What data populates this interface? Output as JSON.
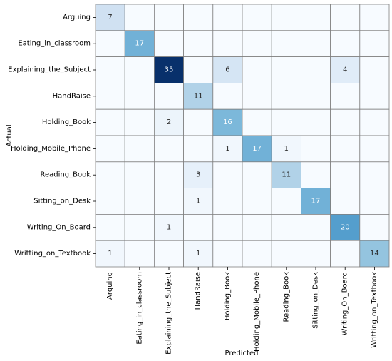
{
  "chart_data": {
    "type": "heatmap",
    "title": "",
    "xlabel": "Predicted",
    "ylabel": "Actual",
    "rows": [
      "Arguing",
      "Eating_in_classroom",
      "Explaining_the_Subject",
      "HandRaise",
      "Holding_Book",
      "Holding_Mobile_Phone",
      "Reading_Book",
      "Sitting_on_Desk",
      "Writing_On_Board",
      "Writting_on_Textbook"
    ],
    "columns": [
      "Arguing",
      "Eating_in_classroom",
      "Explaining_the_Subject",
      "HandRaise",
      "Holding_Book",
      "Holding_Mobile_Phone",
      "Reading_Book",
      "Sitting_on_Desk",
      "Writing_On_Board",
      "Writting_on_Textbook"
    ],
    "values": [
      [
        7,
        0,
        0,
        0,
        0,
        0,
        0,
        0,
        0,
        0
      ],
      [
        0,
        17,
        0,
        0,
        0,
        0,
        0,
        0,
        0,
        0
      ],
      [
        0,
        0,
        35,
        0,
        6,
        0,
        0,
        0,
        4,
        0
      ],
      [
        0,
        0,
        0,
        11,
        0,
        0,
        0,
        0,
        0,
        0
      ],
      [
        0,
        0,
        2,
        0,
        16,
        0,
        0,
        0,
        0,
        0
      ],
      [
        0,
        0,
        0,
        0,
        1,
        17,
        1,
        0,
        0,
        0
      ],
      [
        0,
        0,
        0,
        3,
        0,
        0,
        11,
        0,
        0,
        0
      ],
      [
        0,
        0,
        0,
        1,
        0,
        0,
        0,
        17,
        0,
        0
      ],
      [
        0,
        0,
        1,
        0,
        0,
        0,
        0,
        0,
        20,
        0
      ],
      [
        1,
        0,
        0,
        1,
        0,
        0,
        0,
        0,
        0,
        14
      ]
    ],
    "zero_labels_shown": false,
    "colormap": "Blues",
    "value_range": [
      0,
      35
    ],
    "legend": "none",
    "grid": true,
    "colors": {
      "low": "#f7fbff",
      "high": "#08306b",
      "cell_border": "#808080",
      "dark_text": "#262626",
      "light_text": "#ffffff"
    }
  }
}
